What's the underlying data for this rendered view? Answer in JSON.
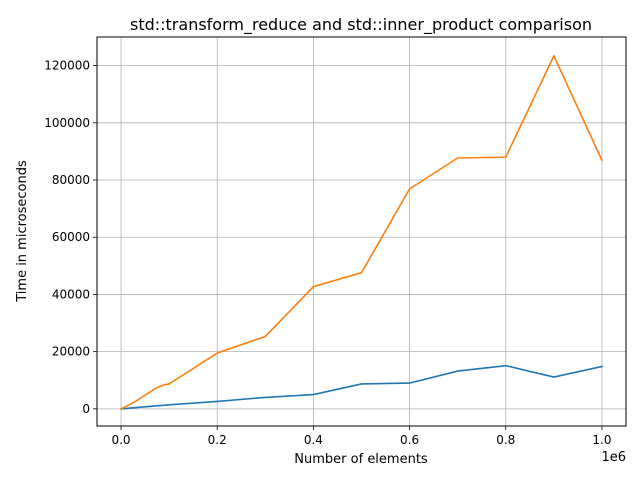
{
  "chart_data": {
    "type": "line",
    "title": "std::transform_reduce and std::inner_product comparison",
    "xlabel": "Number of elements",
    "ylabel": "Time in microseconds",
    "x_offset_label": "1e6",
    "xlim": [
      -50000,
      1050000
    ],
    "ylim": [
      -6000,
      130000
    ],
    "x_ticks": [
      0,
      200000,
      400000,
      600000,
      800000,
      1000000
    ],
    "x_tick_labels": [
      "0.0",
      "0.2",
      "0.4",
      "0.6",
      "0.8",
      "1.0"
    ],
    "y_ticks": [
      0,
      20000,
      40000,
      60000,
      80000,
      100000,
      120000
    ],
    "y_tick_labels": [
      "0",
      "20000",
      "40000",
      "60000",
      "80000",
      "100000",
      "120000"
    ],
    "grid": true,
    "series": [
      {
        "color": "#1f77b4",
        "x": [
          0,
          100000,
          200000,
          300000,
          400000,
          500000,
          600000,
          700000,
          800000,
          900000,
          1000000
        ],
        "values": [
          0,
          1400,
          2600,
          4000,
          5000,
          8700,
          9000,
          13200,
          15100,
          11100,
          14800
        ]
      },
      {
        "color": "#ff7f0e",
        "x": [
          0,
          10000,
          20000,
          30000,
          40000,
          50000,
          60000,
          70000,
          80000,
          90000,
          100000,
          200000,
          300000,
          400000,
          500000,
          600000,
          700000,
          800000,
          900000,
          1000000
        ],
        "values": [
          0,
          800,
          1700,
          2600,
          3700,
          4800,
          5800,
          7000,
          7800,
          8400,
          8700,
          19500,
          25300,
          42700,
          47600,
          76900,
          87700,
          88000,
          123400,
          86900
        ]
      }
    ]
  }
}
